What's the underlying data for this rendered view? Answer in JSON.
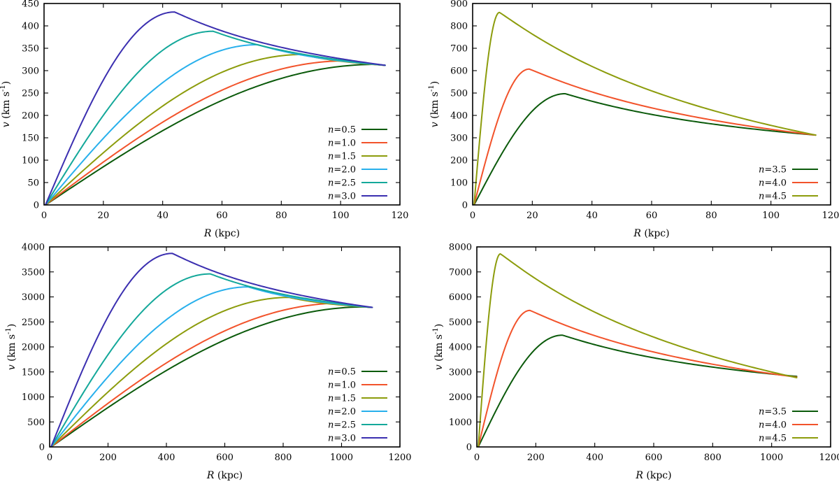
{
  "colors": {
    "n0_5": "#0b5a0b",
    "n1_0": "#f2532b",
    "n1_5": "#8c9c0c",
    "n2_0": "#28b0ec",
    "n2_5": "#14a89a",
    "n3_0": "#3b2fb0"
  },
  "chart_data": [
    {
      "type": "line",
      "panel": "top-left",
      "xlabel_var": "R",
      "xlabel_unit": " (kpc)",
      "ylabel_var": "v",
      "ylabel_unit_pre": " (km s",
      "ylabel_unit_sup": "-1",
      "ylabel_unit_post": ")",
      "xlim": [
        0,
        120
      ],
      "ylim": [
        0,
        450
      ],
      "xticks": [
        "0",
        "20",
        "40",
        "60",
        "80",
        "100",
        "120"
      ],
      "yticks": [
        "0",
        "50",
        "100",
        "150",
        "200",
        "250",
        "300",
        "350",
        "400",
        "450"
      ],
      "legend_position": "bottom-right",
      "series": [
        {
          "name": "n=0.5",
          "n_value": "0.5",
          "color_key": "n0_5",
          "peak": [
            112,
            314
          ],
          "end": [
            115,
            312
          ]
        },
        {
          "name": "n=1.0",
          "n_value": "1.0",
          "color_key": "n1_0",
          "peak": [
            102,
            322
          ],
          "end": [
            115,
            312
          ]
        },
        {
          "name": "n=1.5",
          "n_value": "1.5",
          "color_key": "n1_5",
          "peak": [
            87,
            336
          ],
          "end": [
            115,
            312
          ]
        },
        {
          "name": "n=2.0",
          "n_value": "2.0",
          "color_key": "n2_0",
          "peak": [
            72,
            358
          ],
          "end": [
            115,
            312
          ]
        },
        {
          "name": "n=2.5",
          "n_value": "2.5",
          "color_key": "n2_5",
          "peak": [
            57,
            388
          ],
          "end": [
            115,
            312
          ]
        },
        {
          "name": "n=3.0",
          "n_value": "3.0",
          "color_key": "n3_0",
          "peak": [
            44,
            431
          ],
          "end": [
            115,
            312
          ]
        }
      ]
    },
    {
      "type": "line",
      "panel": "top-right",
      "xlabel_var": "R",
      "xlabel_unit": " (kpc)",
      "ylabel_var": "v",
      "ylabel_unit_pre": " (km s",
      "ylabel_unit_sup": "-1",
      "ylabel_unit_post": ")",
      "xlim": [
        0,
        120
      ],
      "ylim": [
        0,
        900
      ],
      "xticks": [
        "0",
        "20",
        "40",
        "60",
        "80",
        "100",
        "120"
      ],
      "yticks": [
        "0",
        "100",
        "200",
        "300",
        "400",
        "500",
        "600",
        "700",
        "800",
        "900"
      ],
      "legend_position": "bottom-right",
      "series": [
        {
          "name": "n=3.5",
          "n_value": "3.5",
          "color_key": "n0_5",
          "peak": [
            31,
            497
          ],
          "end": [
            115,
            312
          ]
        },
        {
          "name": "n=4.0",
          "n_value": "4.0",
          "color_key": "n1_0",
          "peak": [
            19,
            607
          ],
          "end": [
            115,
            312
          ]
        },
        {
          "name": "n=4.5",
          "n_value": "4.5",
          "color_key": "n1_5",
          "peak": [
            9,
            860
          ],
          "end": [
            115,
            312
          ]
        }
      ]
    },
    {
      "type": "line",
      "panel": "bottom-left",
      "xlabel_var": "R",
      "xlabel_unit": " (kpc)",
      "ylabel_var": "v",
      "ylabel_unit_pre": " (km s",
      "ylabel_unit_sup": "-1",
      "ylabel_unit_post": ")",
      "xlim": [
        0,
        1200
      ],
      "ylim": [
        0,
        4000
      ],
      "xticks": [
        "0",
        "200",
        "400",
        "600",
        "800",
        "1000",
        "1200"
      ],
      "yticks": [
        "0",
        "500",
        "1000",
        "1500",
        "2000",
        "2500",
        "3000",
        "3500",
        "4000"
      ],
      "legend_position": "bottom-right",
      "series": [
        {
          "name": "n=0.5",
          "n_value": "0.5",
          "color_key": "n0_5",
          "peak": [
            1080,
            2800
          ],
          "end": [
            1105,
            2790
          ]
        },
        {
          "name": "n=1.0",
          "n_value": "1.0",
          "color_key": "n1_0",
          "peak": [
            1000,
            2875
          ],
          "end": [
            1105,
            2790
          ]
        },
        {
          "name": "n=1.5",
          "n_value": "1.5",
          "color_key": "n1_5",
          "peak": [
            820,
            2990
          ],
          "end": [
            1105,
            2790
          ]
        },
        {
          "name": "n=2.0",
          "n_value": "2.0",
          "color_key": "n2_0",
          "peak": [
            680,
            3200
          ],
          "end": [
            1105,
            2790
          ]
        },
        {
          "name": "n=2.5",
          "n_value": "2.5",
          "color_key": "n2_5",
          "peak": [
            550,
            3460
          ],
          "end": [
            1105,
            2790
          ]
        },
        {
          "name": "n=3.0",
          "n_value": "3.0",
          "color_key": "n3_0",
          "peak": [
            420,
            3870
          ],
          "end": [
            1105,
            2790
          ]
        }
      ]
    },
    {
      "type": "line",
      "panel": "bottom-right",
      "xlabel_var": "R",
      "xlabel_unit": " (kpc)",
      "ylabel_var": "v",
      "ylabel_unit_pre": " (km s",
      "ylabel_unit_sup": "-1",
      "ylabel_unit_post": ")",
      "xlim": [
        0,
        1200
      ],
      "ylim": [
        0,
        8000
      ],
      "xticks": [
        "0",
        "200",
        "400",
        "600",
        "800",
        "1000",
        "1200"
      ],
      "yticks": [
        "0",
        "1000",
        "2000",
        "3000",
        "4000",
        "5000",
        "6000",
        "7000",
        "8000"
      ],
      "legend_position": "bottom-right",
      "series": [
        {
          "name": "n=3.5",
          "n_value": "3.5",
          "color_key": "n0_5",
          "peak": [
            290,
            4470
          ],
          "end": [
            1085,
            2820
          ]
        },
        {
          "name": "n=4.0",
          "n_value": "4.0",
          "color_key": "n1_0",
          "peak": [
            180,
            5460
          ],
          "end": [
            1085,
            2790
          ]
        },
        {
          "name": "n=4.5",
          "n_value": "4.5",
          "color_key": "n1_5",
          "peak": [
            80,
            7720
          ],
          "end": [
            1085,
            2770
          ]
        }
      ]
    }
  ]
}
